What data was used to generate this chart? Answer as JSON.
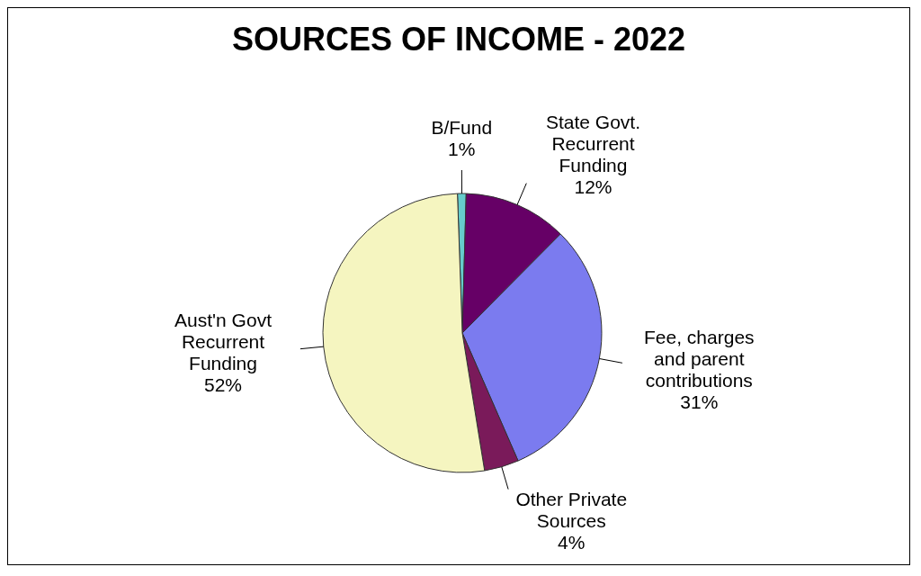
{
  "chart_data": {
    "type": "pie",
    "title": "SOURCES OF INCOME - 2022",
    "categories": [
      "B/Fund",
      "State Govt. Recurrent Funding",
      "Fee, charges and parent contributions",
      "Other Private Sources",
      "Aust'n Govt Recurrent Funding"
    ],
    "values": [
      1,
      12,
      31,
      4,
      52
    ],
    "value_labels": [
      "1%",
      "12%",
      "31%",
      "4%",
      "52%"
    ],
    "colors": [
      "#66cccc",
      "#660066",
      "#7b7bef",
      "#7a1a5a",
      "#f5f5c0"
    ]
  }
}
